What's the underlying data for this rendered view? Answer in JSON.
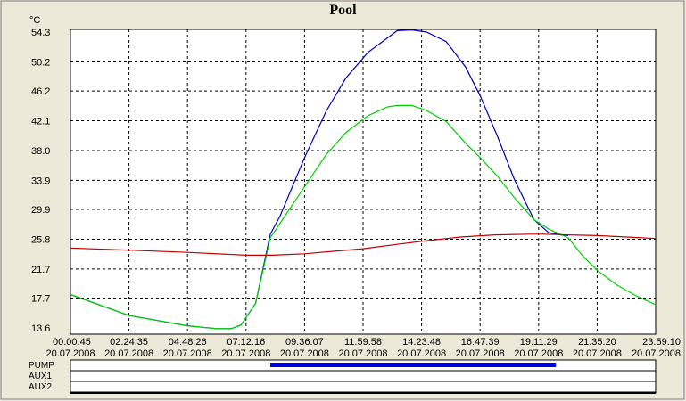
{
  "chart_data": {
    "type": "line",
    "title": "Pool",
    "ylabel": "°C",
    "ylim": [
      13.6,
      55.3
    ],
    "y_ticks": [
      "54.3",
      "50.2",
      "46.2",
      "42.1",
      "38.0",
      "33.9",
      "29.9",
      "25.8",
      "21.7",
      "17.7",
      "13.6"
    ],
    "y_tick_values": [
      54.3,
      50.2,
      46.2,
      42.1,
      38.0,
      33.9,
      29.9,
      25.8,
      21.7,
      17.7,
      13.6
    ],
    "x_ticks": [
      {
        "time": "00:00:45",
        "date": "20.07.2008"
      },
      {
        "time": "02:24:35",
        "date": "20.07.2008"
      },
      {
        "time": "04:48:26",
        "date": "20.07.2008"
      },
      {
        "time": "07:12:16",
        "date": "20.07.2008"
      },
      {
        "time": "09:36:07",
        "date": "20.07.2008"
      },
      {
        "time": "11:59:58",
        "date": "20.07.2008"
      },
      {
        "time": "14:23:48",
        "date": "20.07.2008"
      },
      {
        "time": "16:47:39",
        "date": "20.07.2008"
      },
      {
        "time": "19:11:29",
        "date": "20.07.2008"
      },
      {
        "time": "21:35:20",
        "date": "20.07.2008"
      },
      {
        "time": "23:59:10",
        "date": "20.07.2008"
      }
    ],
    "x_unit": "hours",
    "xlim": [
      0.0125,
      23.986
    ],
    "grid": true,
    "legend": "none",
    "series": [
      {
        "color": "#0000c0",
        "x": [
          0.0125,
          2.4097,
          4.8072,
          6.0,
          6.6,
          7.0,
          7.6,
          8.2,
          8.6,
          9.6,
          10.5,
          11.3,
          12.2,
          13.0,
          13.4,
          14.0,
          14.6,
          15.4,
          16.2,
          16.8,
          17.5,
          18.2,
          19.0,
          19.6,
          20.1,
          20.4
        ],
        "y": [
          18.2,
          15.3,
          13.9,
          13.5,
          13.5,
          14.0,
          17.0,
          26.5,
          29.0,
          37.0,
          43.5,
          48.0,
          51.5,
          53.5,
          54.5,
          54.6,
          54.3,
          53.0,
          49.5,
          45.5,
          40.0,
          34.0,
          28.5,
          26.7,
          26.4,
          26.3
        ]
      },
      {
        "color": "#00d000",
        "x": [
          0.0125,
          2.4097,
          4.8072,
          6.0,
          6.6,
          7.0,
          7.6,
          8.2,
          8.6,
          9.6,
          10.5,
          11.3,
          12.2,
          13.0,
          13.4,
          14.0,
          14.6,
          15.4,
          16.2,
          16.8,
          17.5,
          18.2,
          19.0,
          19.6,
          20.4,
          21.0,
          21.6,
          22.4,
          23.2,
          23.986
        ],
        "y": [
          18.2,
          15.3,
          13.9,
          13.5,
          13.5,
          14.0,
          17.0,
          26.0,
          28.0,
          33.0,
          37.5,
          40.5,
          42.8,
          44.0,
          44.2,
          44.2,
          43.5,
          42.0,
          39.0,
          37.0,
          34.5,
          31.5,
          28.5,
          27.2,
          26.0,
          23.5,
          21.5,
          19.5,
          18.0,
          16.8
        ]
      },
      {
        "color": "#c00000",
        "x": [
          0.0125,
          2.4097,
          4.8072,
          7.2044,
          8.3,
          9.6,
          12.0,
          13.4,
          14.6,
          16.0,
          17.4,
          18.8,
          19.4,
          20.4,
          21.6,
          22.8,
          23.986
        ],
        "y": [
          24.6,
          24.3,
          24.0,
          23.6,
          23.6,
          23.8,
          24.5,
          25.1,
          25.6,
          26.1,
          26.4,
          26.5,
          26.5,
          26.4,
          26.3,
          26.1,
          25.9
        ]
      }
    ]
  },
  "channels": [
    {
      "label": "PUMP",
      "color": "#0000e0",
      "on_from": 8.2,
      "on_to": 19.9
    },
    {
      "label": "AUX1",
      "color": "#0000e0",
      "on_from": null,
      "on_to": null
    },
    {
      "label": "AUX2",
      "color": "#0000e0",
      "on_from": null,
      "on_to": null
    }
  ]
}
